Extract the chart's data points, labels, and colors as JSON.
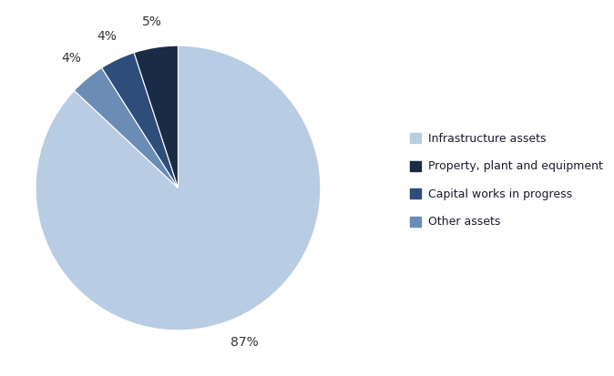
{
  "labels": [
    "Infrastructure assets",
    "Other assets",
    "Capital works in progress",
    "Property, plant and equipment"
  ],
  "values": [
    87,
    4,
    4,
    5
  ],
  "colors": [
    "#b8cce4",
    "#6b8db5",
    "#2e4d7b",
    "#1a2b45"
  ],
  "pct_labels": [
    "87%",
    "4%",
    "4%",
    "5%"
  ],
  "legend_labels": [
    "Infrastructure assets",
    "Property, plant and equipment",
    "Capital works in progress",
    "Other assets"
  ],
  "legend_colors": [
    "#b8cce4",
    "#1a2b45",
    "#2e4d7b",
    "#6b8db5"
  ],
  "startangle": 90,
  "background_color": "#ffffff"
}
